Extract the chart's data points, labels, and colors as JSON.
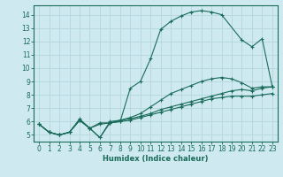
{
  "xlabel": "Humidex (Indice chaleur)",
  "bg_color": "#ceeaf0",
  "grid_color": "#b8d8e0",
  "line_color": "#1a6b5a",
  "xlim": [
    -0.5,
    23.5
  ],
  "ylim": [
    4.5,
    14.7
  ],
  "xticks": [
    0,
    1,
    2,
    3,
    4,
    5,
    6,
    7,
    8,
    9,
    10,
    11,
    12,
    13,
    14,
    15,
    16,
    17,
    18,
    19,
    20,
    21,
    22,
    23
  ],
  "yticks": [
    5,
    6,
    7,
    8,
    9,
    10,
    11,
    12,
    13,
    14
  ],
  "series": [
    {
      "x": [
        0,
        1,
        2,
        3,
        4,
        5,
        6,
        7,
        8,
        9,
        10,
        11,
        12,
        13,
        14,
        15,
        16,
        17,
        18,
        20,
        21,
        22,
        23
      ],
      "y": [
        5.8,
        5.2,
        5.0,
        5.2,
        6.1,
        5.5,
        5.8,
        5.9,
        6.0,
        8.5,
        9.0,
        10.7,
        12.9,
        13.5,
        13.9,
        14.2,
        14.3,
        14.2,
        14.0,
        12.1,
        11.6,
        12.2,
        8.6
      ]
    },
    {
      "x": [
        0,
        1,
        2,
        3,
        4,
        5,
        6,
        7,
        8,
        9,
        10,
        11,
        12,
        13,
        14,
        15,
        16,
        17,
        18,
        19,
        20,
        21,
        22,
        23
      ],
      "y": [
        5.8,
        5.2,
        5.0,
        5.2,
        6.2,
        5.5,
        5.9,
        5.9,
        6.1,
        6.3,
        6.6,
        7.1,
        7.6,
        8.1,
        8.4,
        8.7,
        9.0,
        9.2,
        9.3,
        9.2,
        8.9,
        8.5,
        8.6,
        8.6
      ]
    },
    {
      "x": [
        0,
        1,
        2,
        3,
        4,
        5,
        6,
        7,
        8,
        9,
        10,
        11,
        12,
        13,
        14,
        15,
        16,
        17,
        18,
        19,
        20,
        21,
        22,
        23
      ],
      "y": [
        5.8,
        5.2,
        5.0,
        5.2,
        6.1,
        5.5,
        4.8,
        6.0,
        6.1,
        6.2,
        6.4,
        6.6,
        6.9,
        7.1,
        7.3,
        7.5,
        7.7,
        7.9,
        8.1,
        8.3,
        8.4,
        8.3,
        8.5,
        8.6
      ]
    },
    {
      "x": [
        0,
        1,
        2,
        3,
        4,
        5,
        6,
        7,
        8,
        9,
        10,
        11,
        12,
        13,
        14,
        15,
        16,
        17,
        18,
        19,
        20,
        21,
        22,
        23
      ],
      "y": [
        5.8,
        5.2,
        5.0,
        5.2,
        6.1,
        5.5,
        4.8,
        5.9,
        6.0,
        6.1,
        6.3,
        6.5,
        6.7,
        6.9,
        7.1,
        7.3,
        7.5,
        7.7,
        7.8,
        7.9,
        7.9,
        7.9,
        8.0,
        8.1
      ]
    }
  ]
}
